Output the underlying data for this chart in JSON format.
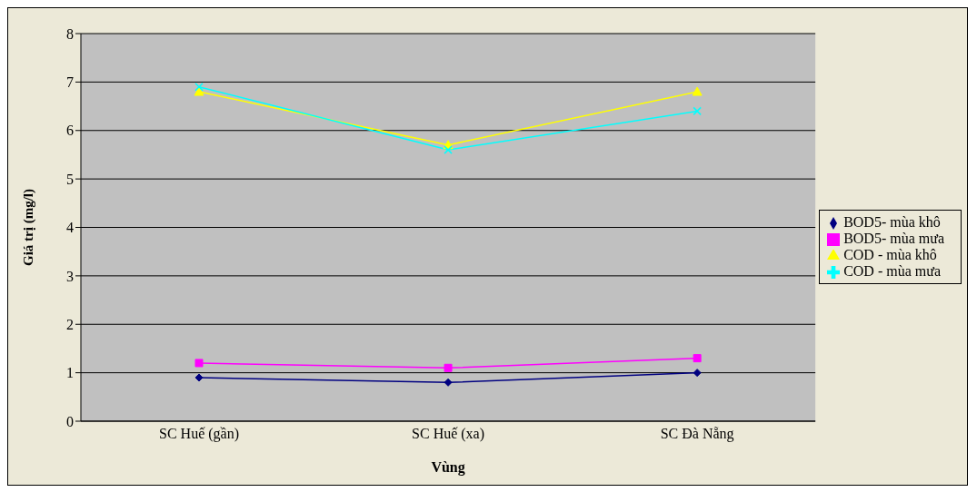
{
  "chart_data": {
    "type": "line",
    "xlabel": "Vùng",
    "ylabel": "Giá trị (mg/l)",
    "categories": [
      "SC Huế (gần)",
      "SC Huế (xa)",
      "SC Đà Nẵng"
    ],
    "series": [
      {
        "name": "BOD5- mùa khô",
        "color": "#000080",
        "marker": "diamond",
        "values": [
          0.9,
          0.8,
          1.0
        ]
      },
      {
        "name": "BOD5- mùa mưa",
        "color": "#ff00ff",
        "marker": "square",
        "values": [
          1.2,
          1.1,
          1.3
        ]
      },
      {
        "name": "COD - mùa khô",
        "color": "#ffff00",
        "marker": "triangle",
        "values": [
          6.8,
          5.7,
          6.8
        ]
      },
      {
        "name": "COD - mùa mưa",
        "color": "#00ffff",
        "marker": "cross",
        "values": [
          6.9,
          5.6,
          6.4
        ]
      }
    ],
    "ylim": [
      0,
      8
    ],
    "yticks": [
      0,
      1,
      2,
      3,
      4,
      5,
      6,
      7,
      8
    ],
    "grid": "y",
    "legend": "right",
    "line_style": "solid"
  }
}
